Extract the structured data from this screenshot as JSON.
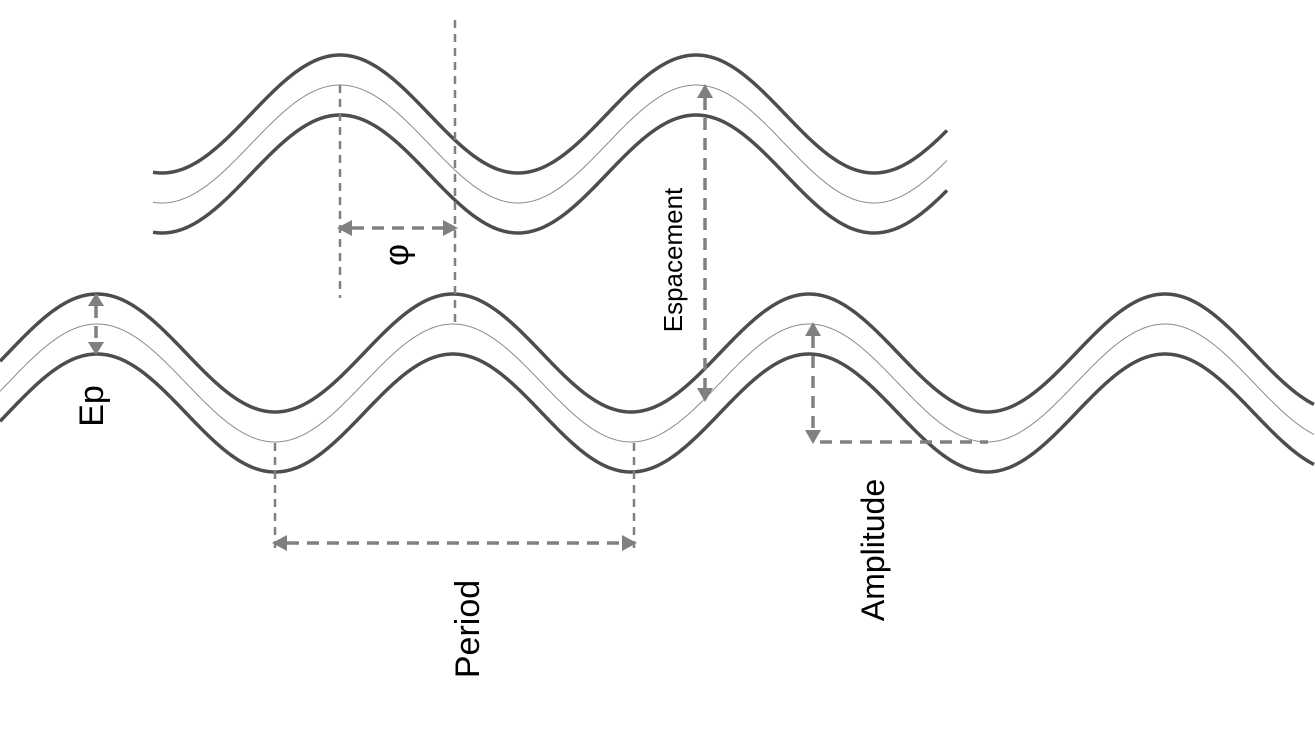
{
  "diagram": {
    "labels": {
      "phase": "φ",
      "thickness": "Ep",
      "period": "Period",
      "spacing": "Espacement",
      "amplitude": "Amplitude"
    },
    "colors": {
      "wave": "#4d4d4d",
      "centerline": "#8a8a8a",
      "dimension": "#808080",
      "text": "#000000"
    }
  }
}
